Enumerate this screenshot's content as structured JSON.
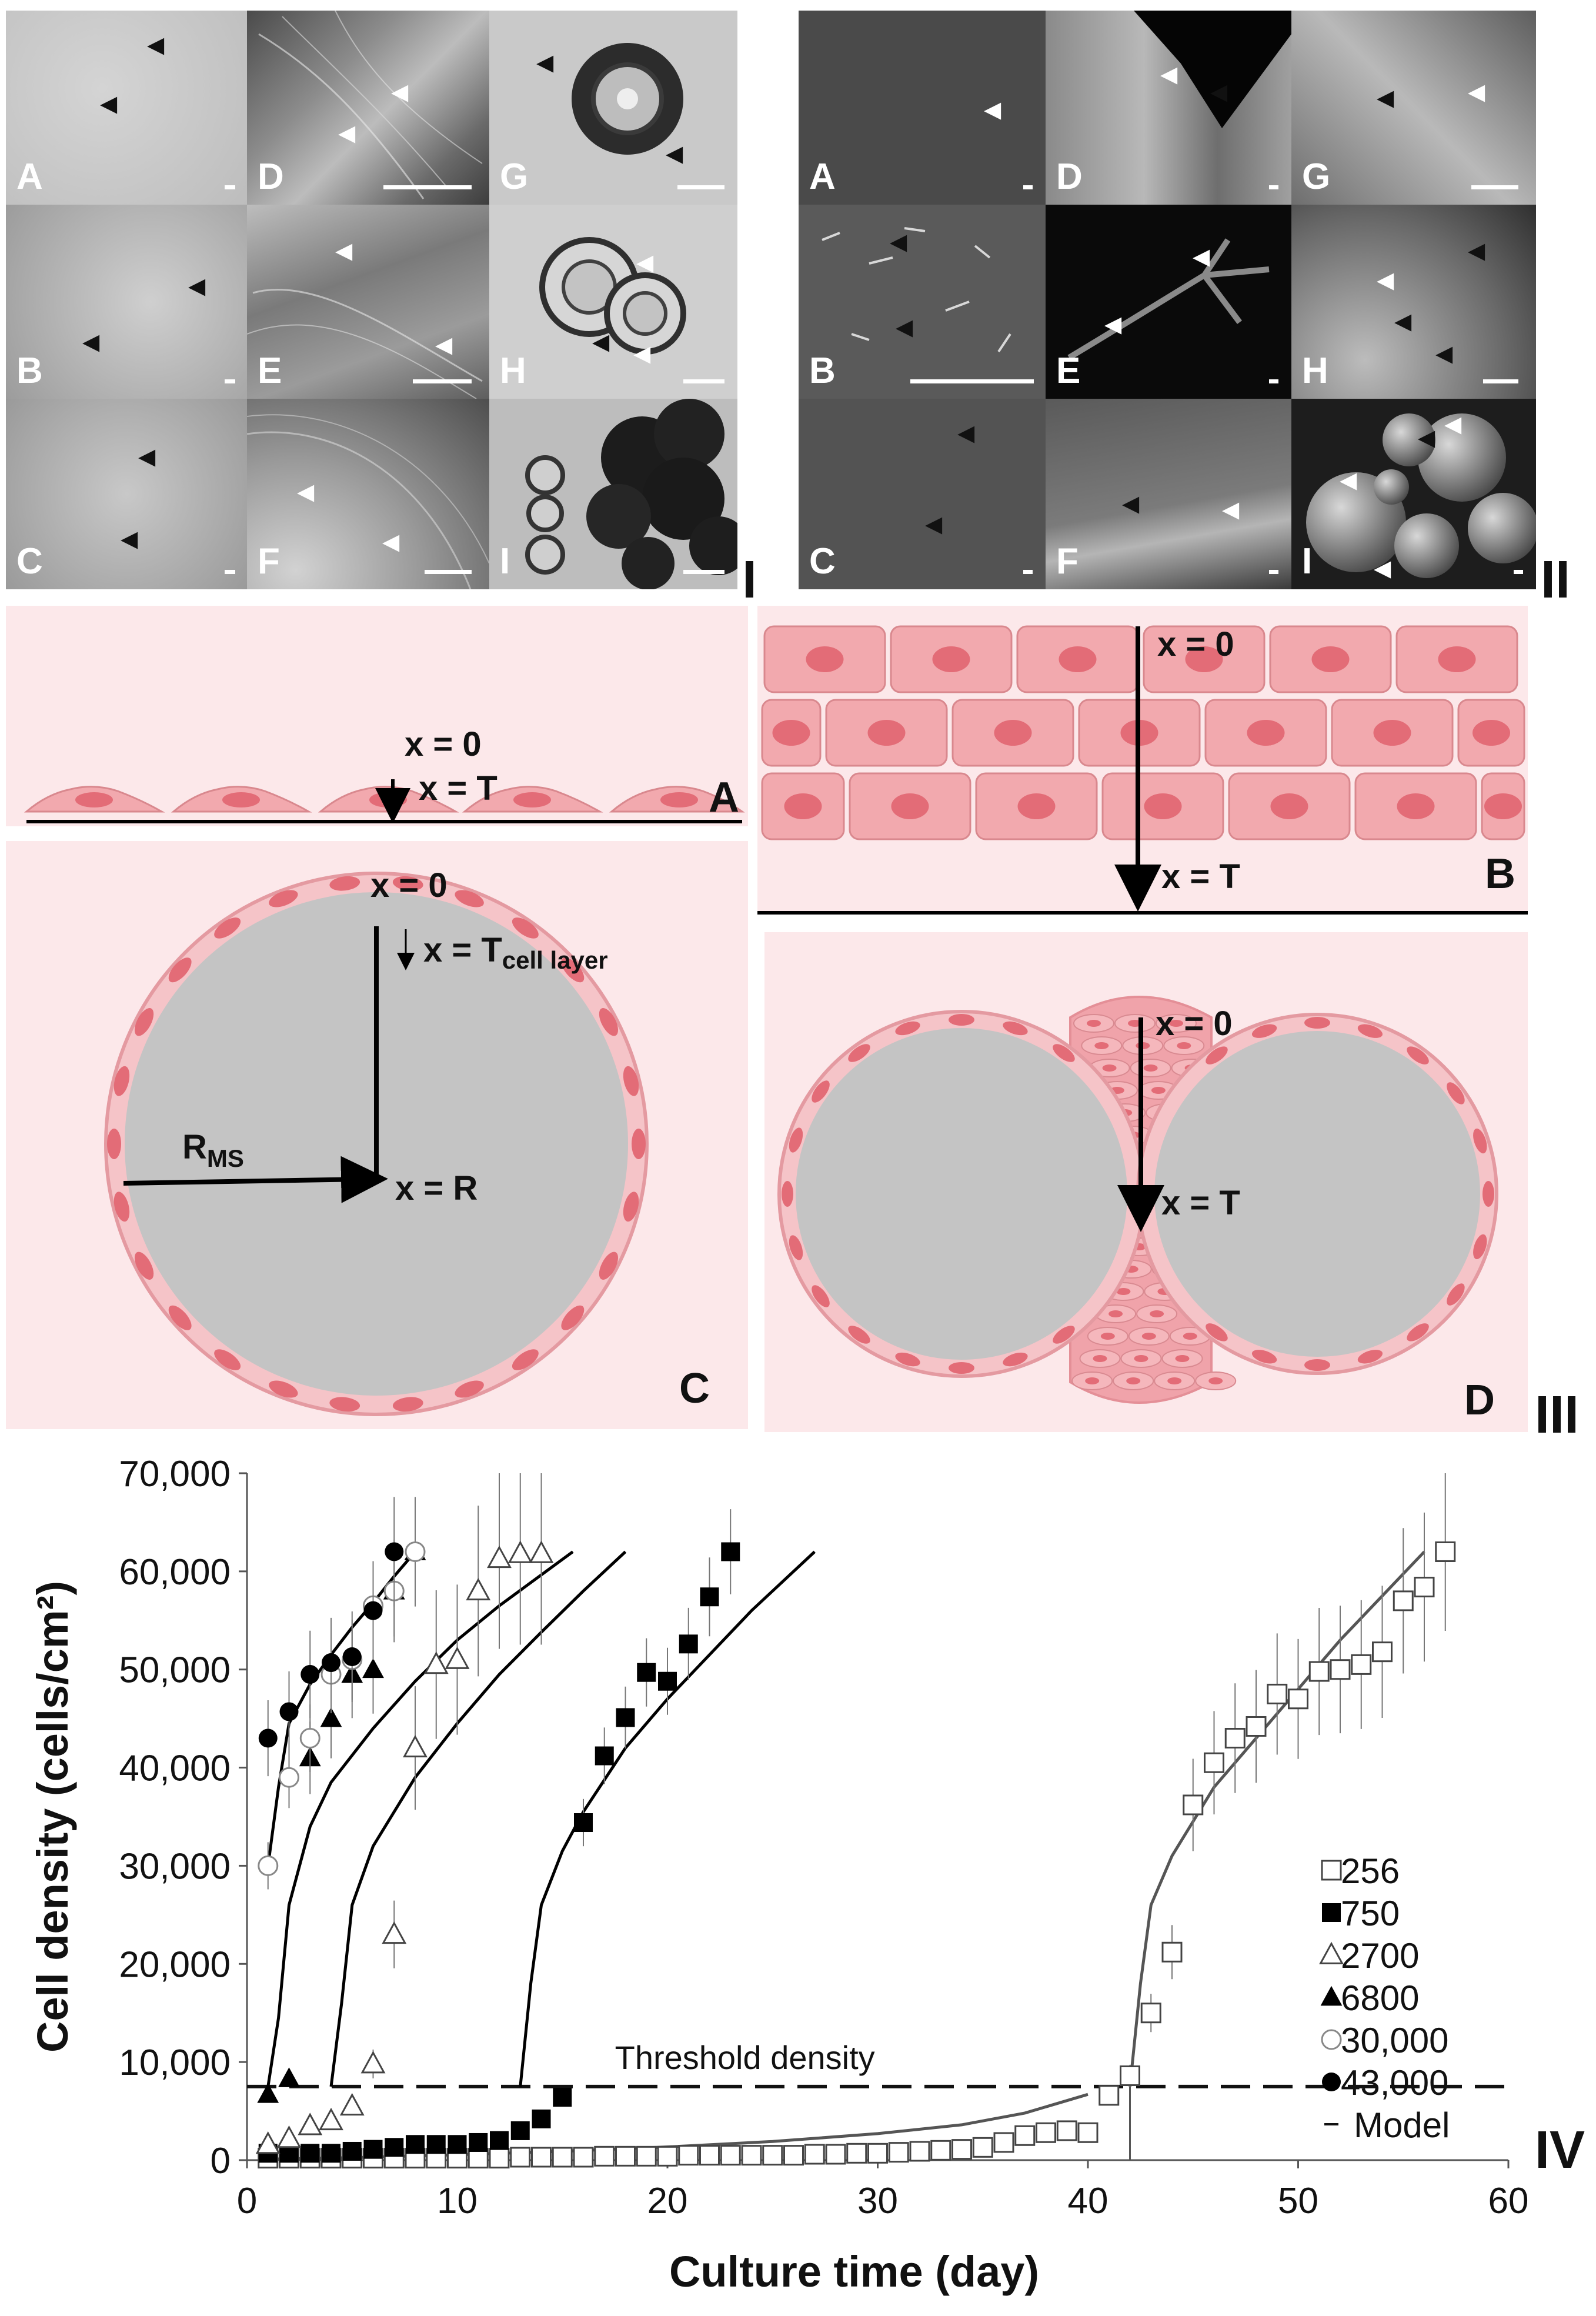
{
  "panel_I": {
    "roman": "I",
    "tiles": [
      "A",
      "B",
      "C",
      "D",
      "E",
      "F",
      "G",
      "H",
      "I"
    ]
  },
  "panel_II": {
    "roman": "II",
    "tiles": [
      "A",
      "B",
      "C",
      "D",
      "E",
      "F",
      "G",
      "H",
      "I"
    ]
  },
  "panel_III": {
    "roman": "III",
    "A": {
      "letter": "A",
      "x0": "x = 0",
      "xT": "x = T"
    },
    "B": {
      "letter": "B",
      "x0": "x = 0",
      "xT": "x = T"
    },
    "C": {
      "letter": "C",
      "x0": "x = 0",
      "xTcell": "x = T",
      "xTcell_sub": "cell layer",
      "R": "R",
      "R_sub": "MS",
      "xR": "x = R"
    },
    "D": {
      "letter": "D",
      "x0": "x = 0",
      "xT": "x = T"
    }
  },
  "panel_IV": {
    "roman": "IV",
    "threshold_label": "Threshold density",
    "colors": {
      "black": "#000000",
      "gray": "#555555"
    }
  },
  "chart_data": {
    "type": "scatter",
    "xlabel": "Culture time (day)",
    "ylabel": "Cell density (cells/cm²)",
    "xlim": [
      0,
      60
    ],
    "ylim": [
      0,
      70000
    ],
    "xticks": [
      "0",
      "10",
      "20",
      "30",
      "40",
      "50",
      "60"
    ],
    "yticks": [
      "0",
      "10,000",
      "20,000",
      "30,000",
      "40,000",
      "50,000",
      "60,000",
      "70,000"
    ],
    "threshold": 7500,
    "legend_position": "right",
    "series": [
      {
        "name": "256",
        "marker": "open-square",
        "x": [
          1,
          2,
          3,
          4,
          5,
          6,
          7,
          8,
          9,
          10,
          11,
          12,
          13,
          14,
          15,
          16,
          17,
          18,
          19,
          20,
          21,
          22,
          23,
          24,
          25,
          26,
          27,
          28,
          29,
          30,
          31,
          32,
          33,
          34,
          35,
          36,
          37,
          38,
          39,
          40,
          41,
          42,
          43,
          44,
          45,
          46,
          47,
          48,
          49,
          50,
          51,
          52,
          53,
          54,
          55,
          56,
          57
        ],
        "y": [
          200,
          200,
          200,
          200,
          200,
          200,
          200,
          200,
          200,
          200,
          200,
          200,
          300,
          300,
          300,
          300,
          400,
          400,
          400,
          400,
          500,
          500,
          500,
          500,
          500,
          500,
          600,
          600,
          700,
          700,
          800,
          900,
          1000,
          1100,
          1300,
          1800,
          2500,
          2800,
          3000,
          2800,
          6600,
          8600,
          15000,
          21200,
          36200,
          40500,
          43000,
          44200,
          47500,
          47000,
          49800,
          50000,
          50500,
          51800,
          57000,
          58400,
          62000
        ]
      },
      {
        "name": "750",
        "marker": "filled-square",
        "x": [
          1,
          2,
          3,
          4,
          5,
          6,
          7,
          8,
          9,
          10,
          11,
          12,
          13,
          14,
          15,
          16,
          17,
          18,
          19,
          20,
          21,
          22,
          23
        ],
        "y": [
          700,
          700,
          700,
          700,
          900,
          1100,
          1300,
          1600,
          1600,
          1600,
          1800,
          2000,
          3000,
          4200,
          6400,
          34400,
          41200,
          45100,
          49700,
          48800,
          52600,
          57400,
          62000
        ]
      },
      {
        "name": "2700",
        "marker": "open-triangle",
        "x": [
          1,
          2,
          3,
          4,
          5,
          6,
          7,
          8,
          9,
          10,
          11,
          12,
          13,
          14
        ],
        "y": [
          1600,
          2200,
          3500,
          4000,
          5500,
          9800,
          23000,
          42000,
          50500,
          51000,
          58000,
          61300,
          61800,
          61800
        ]
      },
      {
        "name": "6800",
        "marker": "filled-triangle",
        "x": [
          1,
          2,
          3,
          4,
          5,
          6,
          7,
          8
        ],
        "y": [
          6700,
          8300,
          41000,
          45000,
          49500,
          50000,
          58000,
          62000
        ]
      },
      {
        "name": "30,000",
        "marker": "open-circle",
        "x": [
          1,
          2,
          3,
          4,
          5,
          6,
          7,
          8
        ],
        "y": [
          30000,
          39000,
          43000,
          49500,
          51000,
          56500,
          58000,
          62000
        ]
      },
      {
        "name": "43,000",
        "marker": "filled-circle",
        "x": [
          1,
          2,
          3,
          4,
          5,
          6,
          7
        ],
        "y": [
          43000,
          45700,
          49500,
          50700,
          51300,
          56000,
          62000
        ]
      },
      {
        "name": "Model",
        "marker": "line"
      }
    ],
    "model_curves": [
      {
        "color": "#000000",
        "x": [
          1,
          1.5,
          2,
          3,
          4,
          5,
          6,
          7,
          8
        ],
        "y": [
          30000,
          38000,
          44500,
          48500,
          51500,
          54300,
          56800,
          59500,
          62000
        ]
      },
      {
        "color": "#000000",
        "x": [
          1,
          1.5,
          2,
          3,
          4,
          6,
          8,
          10,
          12,
          15.5
        ],
        "y": [
          7500,
          14500,
          26000,
          34000,
          38500,
          44000,
          48800,
          53000,
          56500,
          62000
        ]
      },
      {
        "color": "#000000",
        "x": [
          4,
          4.5,
          5,
          6,
          8,
          10,
          12,
          14,
          16,
          18
        ],
        "y": [
          7500,
          16000,
          26000,
          32000,
          39000,
          44500,
          49500,
          53800,
          58000,
          62000
        ]
      },
      {
        "color": "#000000",
        "x": [
          13,
          13.5,
          14,
          15,
          16,
          18,
          20,
          22,
          24,
          27
        ],
        "y": [
          7500,
          18000,
          26000,
          31500,
          35500,
          42000,
          47000,
          51500,
          56000,
          62000
        ]
      },
      {
        "color": "#555555",
        "x": [
          1,
          5,
          10,
          15,
          20,
          25,
          30,
          34,
          37,
          40
        ],
        "y": [
          100,
          250,
          550,
          900,
          1350,
          1900,
          2700,
          3600,
          4800,
          6700
        ]
      },
      {
        "color": "#555555",
        "x": [
          42,
          42.5,
          43,
          44,
          46,
          48,
          50,
          52,
          54,
          56
        ],
        "y": [
          7500,
          18000,
          26000,
          31000,
          38000,
          43000,
          48000,
          53000,
          57500,
          62000
        ]
      }
    ],
    "threshold_vline_x": 42
  }
}
